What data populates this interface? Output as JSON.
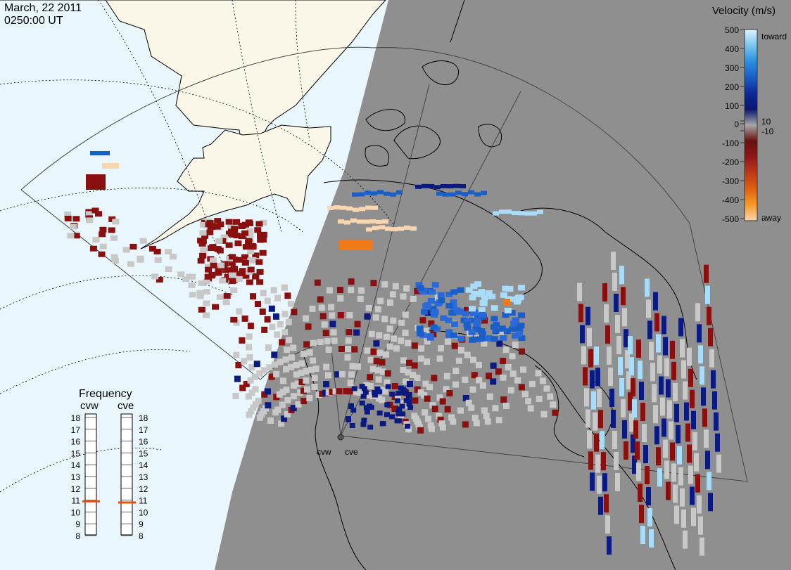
{
  "header": {
    "date": "March, 22 2011",
    "time": "0250:00 UT"
  },
  "colors": {
    "day_ocean": "#e9f6fb",
    "day_land": "#fbf8ea",
    "night": "#8f8f8f",
    "ground_scatter": "#c8c8c8"
  },
  "velocity_scale": {
    "title": "Velocity (m/s)",
    "ticks": [
      "500",
      "400",
      "300",
      "200",
      "100",
      "10",
      "0",
      "-10",
      "-100",
      "-200",
      "-300",
      "-400",
      "-500"
    ],
    "toward_label": "toward",
    "away_label": "away",
    "gradient": [
      "#dff3ff",
      "#79c6f0",
      "#2a90e0",
      "#1a5ec8",
      "#0c2a98",
      "#0a1670",
      "#a6a6a6",
      "#6a0f0f",
      "#8e1818",
      "#c03a18",
      "#e06010",
      "#f79a26",
      "#f8d6b0"
    ]
  },
  "frequency_panel": {
    "title": "Frequency",
    "left_radar": "cvw",
    "right_radar": "cve",
    "ticks": [
      "18",
      "17",
      "16",
      "15",
      "14",
      "13",
      "12",
      "11",
      "10",
      "9",
      "8"
    ],
    "cvw_frequency_mhz": 10.9,
    "cve_frequency_mhz": 10.8,
    "marker_color": "#e05010"
  },
  "radar_sites": {
    "west_label": "cvw",
    "east_label": "cve"
  }
}
